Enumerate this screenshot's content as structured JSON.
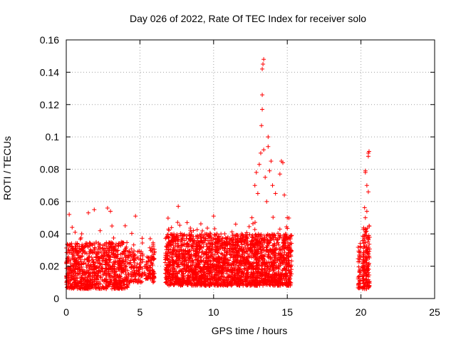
{
  "chart_data": {
    "type": "scatter",
    "title": "Day 026 of 2022, Rate Of TEC Index for receiver solo",
    "xlabel": "GPS time / hours",
    "ylabel": "ROTI / TECUs",
    "xlim": [
      0,
      25
    ],
    "ylim": [
      0,
      0.16
    ],
    "xticks": [
      0,
      5,
      10,
      15,
      20,
      25
    ],
    "yticks": [
      0,
      0.02,
      0.04,
      0.06,
      0.08,
      0.1,
      0.12,
      0.14,
      0.16
    ],
    "ytick_labels": [
      "0",
      "0.02",
      "0.04",
      "0.06",
      "0.08",
      "0.1",
      "0.12",
      "0.14",
      "0.16"
    ],
    "xtick_labels": [
      "0",
      "5",
      "10",
      "15",
      "20",
      "25"
    ],
    "grid": true,
    "marker": "+",
    "color": "#ff0000",
    "segments": [
      {
        "t0": 0.0,
        "t1": 4.2,
        "base_min": 0.006,
        "base_max": 0.035,
        "density": 900
      },
      {
        "t0": 4.2,
        "t1": 5.2,
        "base_min": 0.01,
        "base_max": 0.03,
        "density": 120
      },
      {
        "t0": 5.3,
        "t1": 5.8,
        "base_min": 0.012,
        "base_max": 0.026,
        "density": 50
      },
      {
        "t0": 5.8,
        "t1": 6.0,
        "base_min": 0.01,
        "base_max": 0.035,
        "density": 40
      },
      {
        "t0": 6.7,
        "t1": 15.3,
        "base_min": 0.008,
        "base_max": 0.04,
        "density": 2400
      },
      {
        "t0": 19.8,
        "t1": 20.0,
        "base_min": 0.006,
        "base_max": 0.035,
        "density": 40
      },
      {
        "t0": 20.1,
        "t1": 20.6,
        "base_min": 0.006,
        "base_max": 0.045,
        "density": 160
      }
    ],
    "peaks": [
      {
        "x": 0.2,
        "y": 0.052
      },
      {
        "x": 0.4,
        "y": 0.044
      },
      {
        "x": 0.6,
        "y": 0.041
      },
      {
        "x": 1.5,
        "y": 0.053
      },
      {
        "x": 1.9,
        "y": 0.055
      },
      {
        "x": 2.3,
        "y": 0.042
      },
      {
        "x": 2.8,
        "y": 0.056
      },
      {
        "x": 3.0,
        "y": 0.054
      },
      {
        "x": 4.0,
        "y": 0.045
      },
      {
        "x": 4.7,
        "y": 0.051
      },
      {
        "x": 5.7,
        "y": 0.037
      },
      {
        "x": 6.9,
        "y": 0.038
      },
      {
        "x": 7.6,
        "y": 0.057
      },
      {
        "x": 8.2,
        "y": 0.047
      },
      {
        "x": 10.0,
        "y": 0.051
      },
      {
        "x": 11.5,
        "y": 0.046
      },
      {
        "x": 12.6,
        "y": 0.05
      },
      {
        "x": 12.8,
        "y": 0.07
      },
      {
        "x": 12.9,
        "y": 0.078
      },
      {
        "x": 13.0,
        "y": 0.065
      },
      {
        "x": 13.1,
        "y": 0.083
      },
      {
        "x": 13.2,
        "y": 0.09
      },
      {
        "x": 13.25,
        "y": 0.107
      },
      {
        "x": 13.3,
        "y": 0.117
      },
      {
        "x": 13.3,
        "y": 0.126
      },
      {
        "x": 13.3,
        "y": 0.142
      },
      {
        "x": 13.35,
        "y": 0.145
      },
      {
        "x": 13.4,
        "y": 0.148
      },
      {
        "x": 13.4,
        "y": 0.092
      },
      {
        "x": 13.5,
        "y": 0.075
      },
      {
        "x": 13.6,
        "y": 0.06
      },
      {
        "x": 13.7,
        "y": 0.1
      },
      {
        "x": 13.7,
        "y": 0.094
      },
      {
        "x": 13.8,
        "y": 0.079
      },
      {
        "x": 13.9,
        "y": 0.085
      },
      {
        "x": 14.0,
        "y": 0.07
      },
      {
        "x": 14.2,
        "y": 0.065
      },
      {
        "x": 14.5,
        "y": 0.077
      },
      {
        "x": 14.6,
        "y": 0.085
      },
      {
        "x": 14.7,
        "y": 0.084
      },
      {
        "x": 14.8,
        "y": 0.064
      },
      {
        "x": 15.0,
        "y": 0.05
      },
      {
        "x": 20.3,
        "y": 0.079
      },
      {
        "x": 20.3,
        "y": 0.078
      },
      {
        "x": 20.4,
        "y": 0.07
      },
      {
        "x": 20.5,
        "y": 0.066
      },
      {
        "x": 20.5,
        "y": 0.088
      },
      {
        "x": 20.5,
        "y": 0.09
      },
      {
        "x": 20.55,
        "y": 0.091
      },
      {
        "x": 20.4,
        "y": 0.054
      },
      {
        "x": 20.3,
        "y": 0.05
      }
    ]
  }
}
